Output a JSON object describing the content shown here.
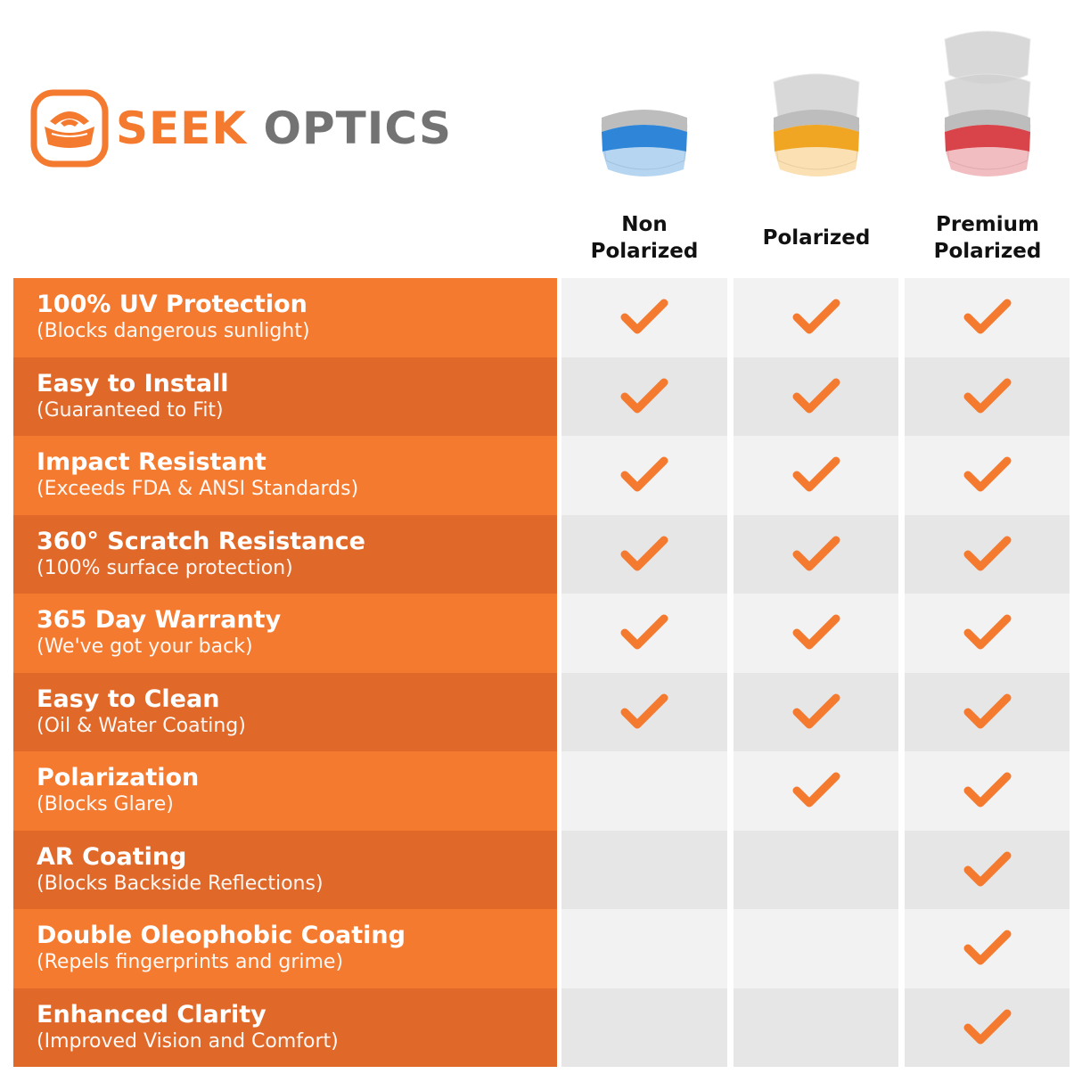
{
  "brand": {
    "name_part1": "SEEK",
    "name_part2": "OPTICS",
    "color": "#f47a30"
  },
  "columns": [
    {
      "label": "Non\nPolarized",
      "lens_color": "#2f86d8"
    },
    {
      "label": "Polarized",
      "lens_color": "#f0a623"
    },
    {
      "label": "Premium\nPolarized",
      "lens_color": "#d9434a"
    }
  ],
  "colors": {
    "row_orange": "#f47a30",
    "row_orange_dark": "#e0692a",
    "check": "#f47a30",
    "cell_light": "#f2f2f2",
    "cell_dark": "#e6e6e6"
  },
  "features": [
    {
      "title": "100% UV Protection",
      "subtitle": "(Blocks dangerous sunlight)",
      "checks": [
        true,
        true,
        true
      ]
    },
    {
      "title": "Easy to Install",
      "subtitle": "(Guaranteed to Fit)",
      "checks": [
        true,
        true,
        true
      ]
    },
    {
      "title": "Impact Resistant",
      "subtitle": "(Exceeds FDA & ANSI Standards)",
      "checks": [
        true,
        true,
        true
      ]
    },
    {
      "title": "360° Scratch Resistance",
      "subtitle": "(100% surface protection)",
      "checks": [
        true,
        true,
        true
      ]
    },
    {
      "title": "365 Day Warranty",
      "subtitle": "(We've got your back)",
      "checks": [
        true,
        true,
        true
      ]
    },
    {
      "title": "Easy to Clean",
      "subtitle": "(Oil & Water Coating)",
      "checks": [
        true,
        true,
        true
      ]
    },
    {
      "title": "Polarization",
      "subtitle": "(Blocks Glare)",
      "checks": [
        false,
        true,
        true
      ]
    },
    {
      "title": "AR Coating",
      "subtitle": "(Blocks Backside Reflections)",
      "checks": [
        false,
        false,
        true
      ]
    },
    {
      "title": "Double Oleophobic Coating",
      "subtitle": "(Repels fingerprints and grime)",
      "checks": [
        false,
        false,
        true
      ]
    },
    {
      "title": "Enhanced Clarity",
      "subtitle": "(Improved Vision and Comfort)",
      "checks": [
        false,
        false,
        true
      ]
    }
  ]
}
